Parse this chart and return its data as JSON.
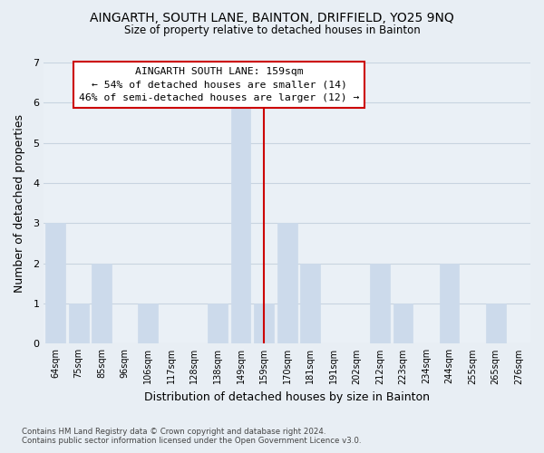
{
  "title": "AINGARTH, SOUTH LANE, BAINTON, DRIFFIELD, YO25 9NQ",
  "subtitle": "Size of property relative to detached houses in Bainton",
  "xlabel": "Distribution of detached houses by size in Bainton",
  "ylabel": "Number of detached properties",
  "bar_labels": [
    "64sqm",
    "75sqm",
    "85sqm",
    "96sqm",
    "106sqm",
    "117sqm",
    "128sqm",
    "138sqm",
    "149sqm",
    "159sqm",
    "170sqm",
    "181sqm",
    "191sqm",
    "202sqm",
    "212sqm",
    "223sqm",
    "234sqm",
    "244sqm",
    "255sqm",
    "265sqm",
    "276sqm"
  ],
  "bar_values": [
    3,
    1,
    2,
    0,
    1,
    0,
    0,
    1,
    6,
    1,
    3,
    2,
    0,
    0,
    2,
    1,
    0,
    2,
    0,
    1,
    0
  ],
  "bar_color": "#ccdaeb",
  "bar_edgecolor": "#ccdaeb",
  "marker_line_x_label": "159sqm",
  "marker_line_color": "#cc0000",
  "ylim": [
    0,
    7
  ],
  "yticks": [
    0,
    1,
    2,
    3,
    4,
    5,
    6,
    7
  ],
  "annotation_text": "AINGARTH SOUTH LANE: 159sqm\n← 54% of detached houses are smaller (14)\n46% of semi-detached houses are larger (12) →",
  "annotation_box_edgecolor": "#cc0000",
  "annotation_box_facecolor": "#ffffff",
  "footnote1": "Contains HM Land Registry data © Crown copyright and database right 2024.",
  "footnote2": "Contains public sector information licensed under the Open Government Licence v3.0.",
  "bg_color": "#e8eef4",
  "plot_bg_color": "#eaf0f6",
  "grid_color": "#c8d4e0"
}
